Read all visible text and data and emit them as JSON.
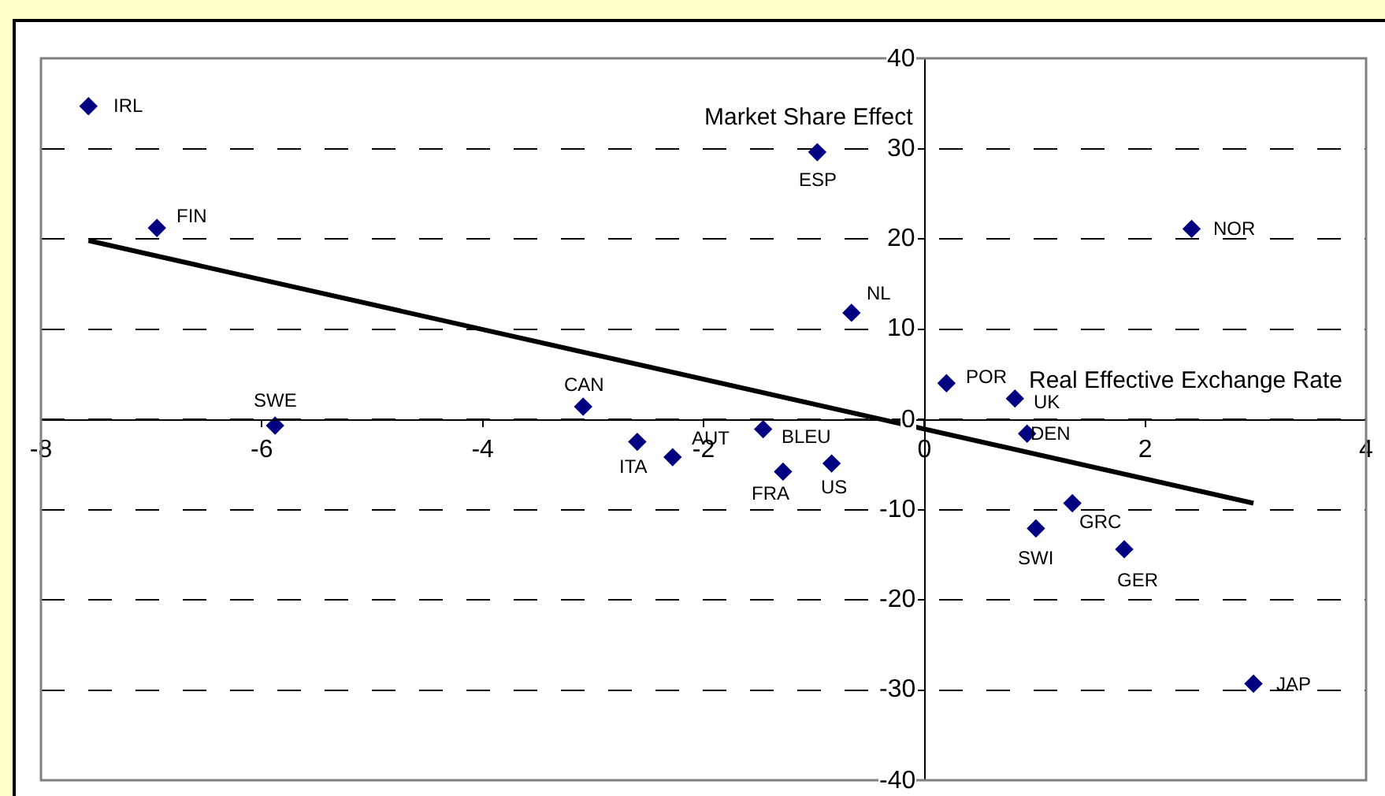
{
  "chart_data": {
    "type": "scatter",
    "xlabel": "Real Effective Exchange Rate",
    "ylabel": "Market Share Effect",
    "xlim": [
      -8,
      4
    ],
    "xticks": [
      -8,
      -6,
      -4,
      -2,
      0,
      2,
      4
    ],
    "ylim": [
      -40,
      40
    ],
    "yticks": [
      -40,
      -30,
      -20,
      -10,
      0,
      10,
      20,
      30,
      40
    ],
    "grid": "y",
    "marker": "diamond",
    "series": [
      {
        "color": "#000080",
        "x": [
          -7.57,
          -6.95,
          -5.88,
          -3.09,
          -2.6,
          -2.28,
          -1.46,
          -1.28,
          -0.84,
          -0.97,
          -0.66,
          0.2,
          0.82,
          0.93,
          1.34,
          1.01,
          1.81,
          2.98,
          2.42
        ],
        "values": [
          34.7,
          21.2,
          -0.7,
          1.4,
          -2.5,
          -4.2,
          -1.1,
          -5.8,
          -4.9,
          29.6,
          11.8,
          4.0,
          2.3,
          -1.6,
          -9.3,
          -12.1,
          -14.4,
          -29.3,
          21.1
        ]
      },
      {
        "type": "line",
        "color": "#000000",
        "marker": "none",
        "line_style": "solid",
        "x": [
          -7.57,
          2.98
        ],
        "values": [
          19.8,
          -9.3
        ]
      }
    ],
    "annotations": [
      {
        "text": "IRL",
        "x": -7.57,
        "y": 34.7
      },
      {
        "text": "FIN",
        "x": -6.95,
        "y": 21.2
      },
      {
        "text": "SWE",
        "x": -5.88,
        "y": -0.7
      },
      {
        "text": "CAN",
        "x": -3.09,
        "y": 1.4
      },
      {
        "text": "ITA",
        "x": -2.6,
        "y": -2.5
      },
      {
        "text": "AUT",
        "x": -2.28,
        "y": -4.2
      },
      {
        "text": "BLEU",
        "x": -1.46,
        "y": -1.1
      },
      {
        "text": "FRA",
        "x": -1.28,
        "y": -5.8
      },
      {
        "text": "US",
        "x": -0.84,
        "y": -4.9
      },
      {
        "text": "ESP",
        "x": -0.97,
        "y": 29.6
      },
      {
        "text": "NL",
        "x": -0.66,
        "y": 11.8
      },
      {
        "text": "POR",
        "x": 0.2,
        "y": 4.0
      },
      {
        "text": "UK",
        "x": 0.82,
        "y": 2.3
      },
      {
        "text": "DEN",
        "x": 0.93,
        "y": -1.6
      },
      {
        "text": "GRC",
        "x": 1.34,
        "y": -9.3
      },
      {
        "text": "SWI",
        "x": 1.01,
        "y": -12.1
      },
      {
        "text": "GER",
        "x": 1.81,
        "y": -14.4
      },
      {
        "text": "JAP",
        "x": 2.98,
        "y": -29.3
      },
      {
        "text": "NOR",
        "x": 2.42,
        "y": 21.1
      }
    ]
  }
}
